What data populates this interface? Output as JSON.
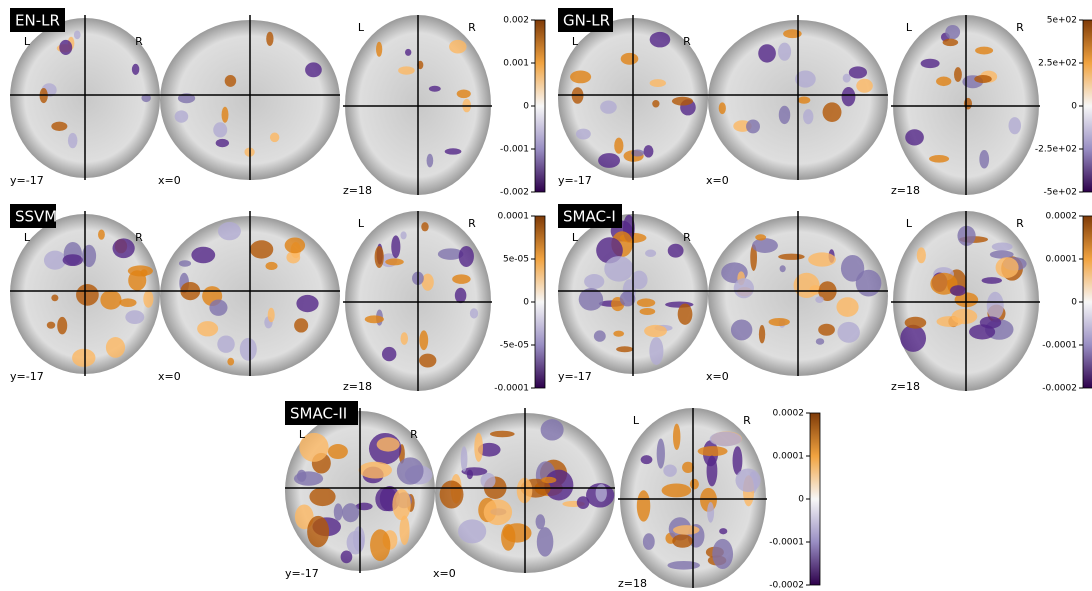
{
  "panels": [
    {
      "title": "EN-LR",
      "orientation": [
        "L",
        "R",
        "L",
        "R"
      ],
      "coords": [
        "y=-17",
        "x=0",
        "z=18"
      ],
      "colorbar_ticks": [
        "0.002",
        "0.001",
        "0",
        "-0.001",
        "-0.002"
      ]
    },
    {
      "title": "GN-LR",
      "orientation": [
        "L",
        "R",
        "L",
        "R"
      ],
      "coords": [
        "y=-17",
        "x=0",
        "z=18"
      ],
      "colorbar_ticks": [
        "5e+02",
        "2.5e+02",
        "0",
        "-2.5e+02",
        "-5e+02"
      ]
    },
    {
      "title": "SSVM",
      "orientation": [
        "L",
        "R",
        "L",
        "R"
      ],
      "coords": [
        "y=-17",
        "x=0",
        "z=18"
      ],
      "colorbar_ticks": [
        "0.0001",
        "5e-05",
        "0",
        "-5e-05",
        "-0.0001"
      ]
    },
    {
      "title": "SMAC-I",
      "orientation": [
        "L",
        "R",
        "L",
        "R"
      ],
      "coords": [
        "y=-17",
        "x=0",
        "z=18"
      ],
      "colorbar_ticks": [
        "0.0002",
        "0.0001",
        "0",
        "-0.0001",
        "-0.0002"
      ]
    },
    {
      "title": "SMAC-II",
      "orientation": [
        "L",
        "R",
        "L",
        "R"
      ],
      "coords": [
        "y=-17",
        "x=0",
        "z=18"
      ],
      "colorbar_ticks": [
        "0.0002",
        "0.0001",
        "0",
        "-0.0001",
        "-0.0002"
      ]
    }
  ]
}
